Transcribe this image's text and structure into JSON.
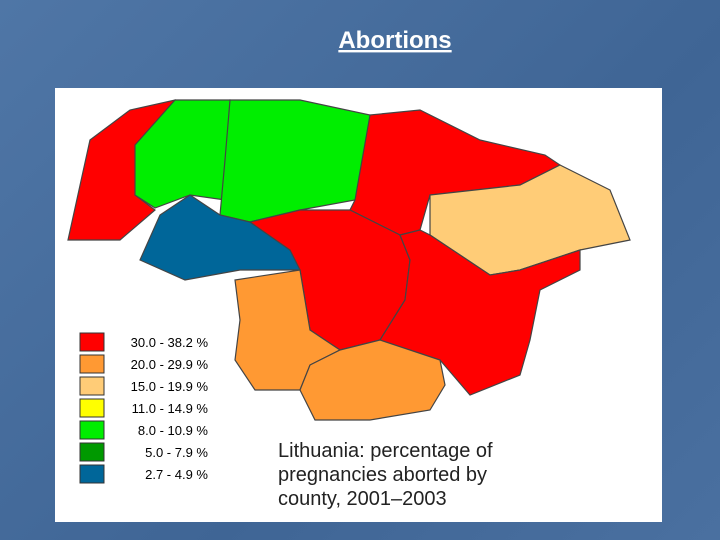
{
  "title": "Abortions",
  "legend": [
    {
      "label": "30.0 - 38.2 %",
      "color": "#ff0000"
    },
    {
      "label": "20.0 - 29.9 %",
      "color": "#ff9933"
    },
    {
      "label": "15.0 - 19.9 %",
      "color": "#ffcc77"
    },
    {
      "label": "11.0 - 14.9 %",
      "color": "#ffff00"
    },
    {
      "label": "8.0 - 10.9 %",
      "color": "#00ee00"
    },
    {
      "label": "5.0 - 7.9 %",
      "color": "#009900"
    },
    {
      "label": "2.7 - 4.9 %",
      "color": "#006699"
    }
  ],
  "caption": [
    "Lithuania: percentage of",
    "pregnancies aborted by",
    "county, 2001–2003"
  ]
}
